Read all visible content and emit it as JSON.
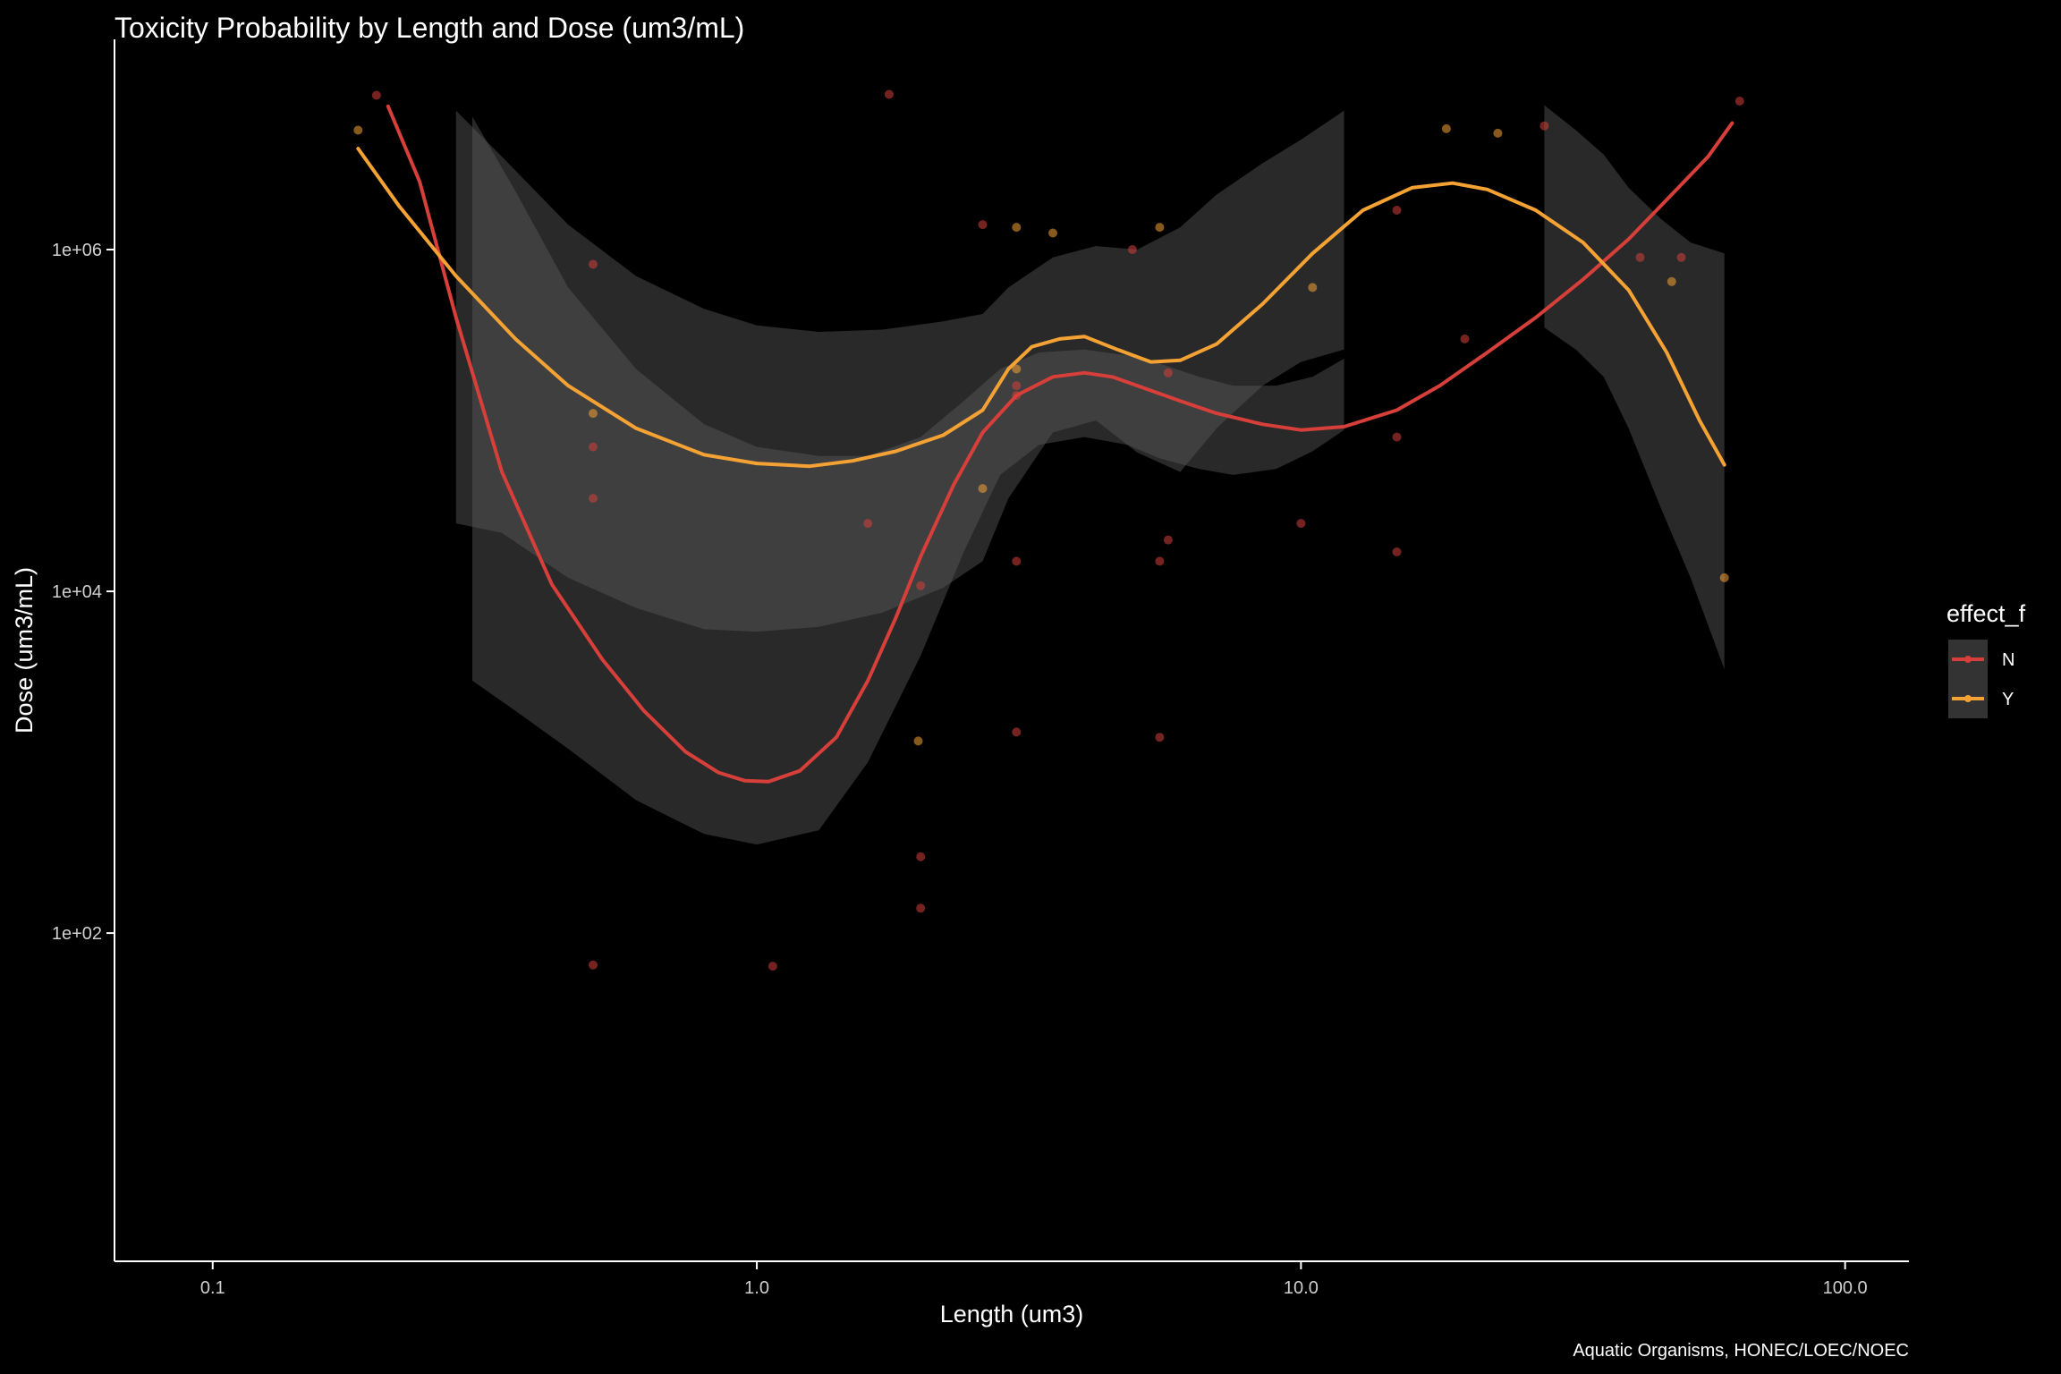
{
  "chart_data": {
    "type": "scatter",
    "title": "Toxicity Probability by Length and Dose (um3/mL)",
    "xlabel": "Length (um3)",
    "ylabel": "Dose (um3/mL)",
    "caption": "Aquatic Organisms, HONEC/LOEC/NOEC",
    "x_scale": "log10",
    "y_scale": "log10",
    "xlim": [
      0.066,
      131
    ],
    "ylim": [
      1.2,
      17000000
    ],
    "x_ticks": [
      0.1,
      1.0,
      10.0,
      100.0
    ],
    "x_tick_labels": [
      "0.1",
      "1.0",
      "10.0",
      "100.0"
    ],
    "y_ticks": [
      100,
      10000,
      1000000
    ],
    "y_tick_labels": [
      "1e+02",
      "1e+04",
      "1e+06"
    ],
    "grid": false,
    "legend": {
      "title": "effect_f",
      "position": "right",
      "entries": [
        {
          "label": "N",
          "color": "#d63f3a"
        },
        {
          "label": "Y",
          "color": "#f5a235"
        }
      ]
    },
    "colors": {
      "background": "#000000",
      "band": "#5a5a5a",
      "axis": "#ffffff",
      "legend_key": "#333333"
    },
    "series": [
      {
        "name": "N",
        "color": "#d63f3a",
        "points": [
          [
            0.2,
            8000000
          ],
          [
            0.5,
            820000
          ],
          [
            0.5,
            70000
          ],
          [
            0.5,
            35000
          ],
          [
            0.5,
            65
          ],
          [
            1.07,
            64
          ],
          [
            1.6,
            25000
          ],
          [
            1.75,
            8100000
          ],
          [
            2.0,
            10800
          ],
          [
            2.0,
            280
          ],
          [
            2.0,
            140
          ],
          [
            2.6,
            1400000
          ],
          [
            3.0,
            15000
          ],
          [
            3.0,
            1500
          ],
          [
            3.0,
            140000
          ],
          [
            3.0,
            160000
          ],
          [
            5.5,
            15000
          ],
          [
            5.5,
            1400
          ],
          [
            5.7,
            20000
          ],
          [
            5.7,
            190000
          ],
          [
            4.9,
            1000000
          ],
          [
            10.0,
            25000
          ],
          [
            15.0,
            1700000
          ],
          [
            15.0,
            17000
          ],
          [
            15.0,
            80000
          ],
          [
            20.0,
            300000
          ],
          [
            28.0,
            5300000
          ],
          [
            42.0,
            900000
          ],
          [
            50.0,
            900000
          ],
          [
            64.0,
            7400000
          ]
        ],
        "smooth": [
          [
            0.21,
            6900000
          ],
          [
            0.24,
            2500000
          ],
          [
            0.28,
            400000
          ],
          [
            0.34,
            50000
          ],
          [
            0.42,
            11000
          ],
          [
            0.52,
            4000
          ],
          [
            0.62,
            2000
          ],
          [
            0.74,
            1150
          ],
          [
            0.85,
            870
          ],
          [
            0.95,
            780
          ],
          [
            1.05,
            770
          ],
          [
            1.2,
            890
          ],
          [
            1.4,
            1400
          ],
          [
            1.6,
            3000
          ],
          [
            1.8,
            7000
          ],
          [
            2.0,
            16000
          ],
          [
            2.3,
            42000
          ],
          [
            2.6,
            85000
          ],
          [
            3.0,
            140000
          ],
          [
            3.5,
            180000
          ],
          [
            4.0,
            190000
          ],
          [
            4.5,
            180000
          ],
          [
            5.0,
            160000
          ],
          [
            6.0,
            130000
          ],
          [
            7.0,
            110000
          ],
          [
            8.5,
            95000
          ],
          [
            10.0,
            88000
          ],
          [
            12.0,
            92000
          ],
          [
            15.0,
            115000
          ],
          [
            18.0,
            160000
          ],
          [
            22.0,
            250000
          ],
          [
            27.0,
            400000
          ],
          [
            33.0,
            670000
          ],
          [
            40.0,
            1150000
          ],
          [
            48.0,
            2100000
          ],
          [
            56.0,
            3500000
          ],
          [
            62.0,
            5500000
          ]
        ],
        "band_upper": [
          [
            0.3,
            6000000
          ],
          [
            0.36,
            2200000
          ],
          [
            0.45,
            600000
          ],
          [
            0.6,
            200000
          ],
          [
            0.8,
            95000
          ],
          [
            1.0,
            70000
          ],
          [
            1.3,
            62000
          ],
          [
            1.6,
            62000
          ],
          [
            2.0,
            80000
          ],
          [
            2.4,
            130000
          ],
          [
            2.8,
            200000
          ],
          [
            3.3,
            250000
          ],
          [
            4.0,
            260000
          ],
          [
            4.8,
            240000
          ],
          [
            5.5,
            215000
          ],
          [
            6.5,
            180000
          ],
          [
            7.5,
            160000
          ],
          [
            9.0,
            160000
          ],
          [
            10.5,
            180000
          ],
          [
            12.0,
            230000
          ]
        ],
        "band_lower": [
          [
            0.3,
            3000
          ],
          [
            0.36,
            2000
          ],
          [
            0.45,
            1200
          ],
          [
            0.6,
            600
          ],
          [
            0.8,
            380
          ],
          [
            1.0,
            330
          ],
          [
            1.3,
            400
          ],
          [
            1.6,
            1000
          ],
          [
            2.0,
            4200
          ],
          [
            2.4,
            17000
          ],
          [
            2.8,
            48000
          ],
          [
            3.3,
            72000
          ],
          [
            4.0,
            80000
          ],
          [
            4.8,
            72000
          ],
          [
            5.5,
            60000
          ],
          [
            6.5,
            52000
          ],
          [
            7.5,
            48000
          ],
          [
            9.0,
            52000
          ],
          [
            10.5,
            66000
          ],
          [
            12.0,
            88000
          ]
        ]
      },
      {
        "name": "Y",
        "color": "#f5a235",
        "points": [
          [
            0.185,
            5000000
          ],
          [
            0.5,
            110000
          ],
          [
            1.98,
            1330
          ],
          [
            2.6,
            40000
          ],
          [
            3.0,
            1350000
          ],
          [
            3.0,
            200000
          ],
          [
            3.5,
            1250000
          ],
          [
            5.5,
            1350000
          ],
          [
            10.5,
            600000
          ],
          [
            18.5,
            5100000
          ],
          [
            23.0,
            4800000
          ],
          [
            48.0,
            650000
          ],
          [
            60.0,
            12000
          ]
        ],
        "smooth": [
          [
            0.185,
            3900000
          ],
          [
            0.22,
            1800000
          ],
          [
            0.28,
            700000
          ],
          [
            0.36,
            300000
          ],
          [
            0.45,
            160000
          ],
          [
            0.6,
            90000
          ],
          [
            0.8,
            63000
          ],
          [
            1.0,
            56000
          ],
          [
            1.25,
            54000
          ],
          [
            1.5,
            58000
          ],
          [
            1.8,
            66000
          ],
          [
            2.2,
            82000
          ],
          [
            2.6,
            115000
          ],
          [
            2.9,
            200000
          ],
          [
            3.2,
            270000
          ],
          [
            3.6,
            300000
          ],
          [
            4.0,
            310000
          ],
          [
            4.6,
            260000
          ],
          [
            5.3,
            220000
          ],
          [
            6.0,
            225000
          ],
          [
            7.0,
            280000
          ],
          [
            8.5,
            480000
          ],
          [
            10.5,
            950000
          ],
          [
            13.0,
            1700000
          ],
          [
            16.0,
            2300000
          ],
          [
            19.0,
            2450000
          ],
          [
            22.0,
            2250000
          ],
          [
            27.0,
            1700000
          ],
          [
            33.0,
            1100000
          ],
          [
            40.0,
            580000
          ],
          [
            47.0,
            250000
          ],
          [
            54.0,
            100000
          ],
          [
            60.0,
            55000
          ]
        ],
        "band_upper": [
          [
            0.28,
            6500000
          ],
          [
            0.34,
            3500000
          ],
          [
            0.45,
            1400000
          ],
          [
            0.6,
            700000
          ],
          [
            0.8,
            450000
          ],
          [
            1.0,
            360000
          ],
          [
            1.3,
            330000
          ],
          [
            1.7,
            340000
          ],
          [
            2.2,
            380000
          ],
          [
            2.6,
            420000
          ],
          [
            2.9,
            600000
          ],
          [
            3.5,
            900000
          ],
          [
            4.2,
            1050000
          ],
          [
            5.0,
            1000000
          ],
          [
            6.0,
            1350000
          ],
          [
            7.0,
            2100000
          ],
          [
            8.5,
            3200000
          ],
          [
            10.0,
            4400000
          ],
          [
            12.0,
            6500000
          ]
        ],
        "band_lower": [
          [
            0.28,
            25000
          ],
          [
            0.34,
            22000
          ],
          [
            0.45,
            12000
          ],
          [
            0.6,
            8000
          ],
          [
            0.8,
            6000
          ],
          [
            1.0,
            5800
          ],
          [
            1.3,
            6200
          ],
          [
            1.7,
            7500
          ],
          [
            2.2,
            10500
          ],
          [
            2.6,
            15000
          ],
          [
            2.9,
            35000
          ],
          [
            3.5,
            85000
          ],
          [
            4.2,
            100000
          ],
          [
            5.0,
            65000
          ],
          [
            6.0,
            50000
          ],
          [
            7.0,
            90000
          ],
          [
            8.5,
            160000
          ],
          [
            10.0,
            220000
          ],
          [
            12.0,
            260000
          ]
        ],
        "band2_upper": [
          [
            28.0,
            7000000
          ],
          [
            32.0,
            5000000
          ],
          [
            36.0,
            3600000
          ],
          [
            40.0,
            2300000
          ],
          [
            46.0,
            1500000
          ],
          [
            52.0,
            1100000
          ],
          [
            60.0,
            950000
          ]
        ],
        "band2_lower": [
          [
            28.0,
            350000
          ],
          [
            32.0,
            260000
          ],
          [
            36.0,
            180000
          ],
          [
            40.0,
            90000
          ],
          [
            46.0,
            30000
          ],
          [
            52.0,
            12000
          ],
          [
            60.0,
            3500
          ]
        ]
      }
    ]
  }
}
